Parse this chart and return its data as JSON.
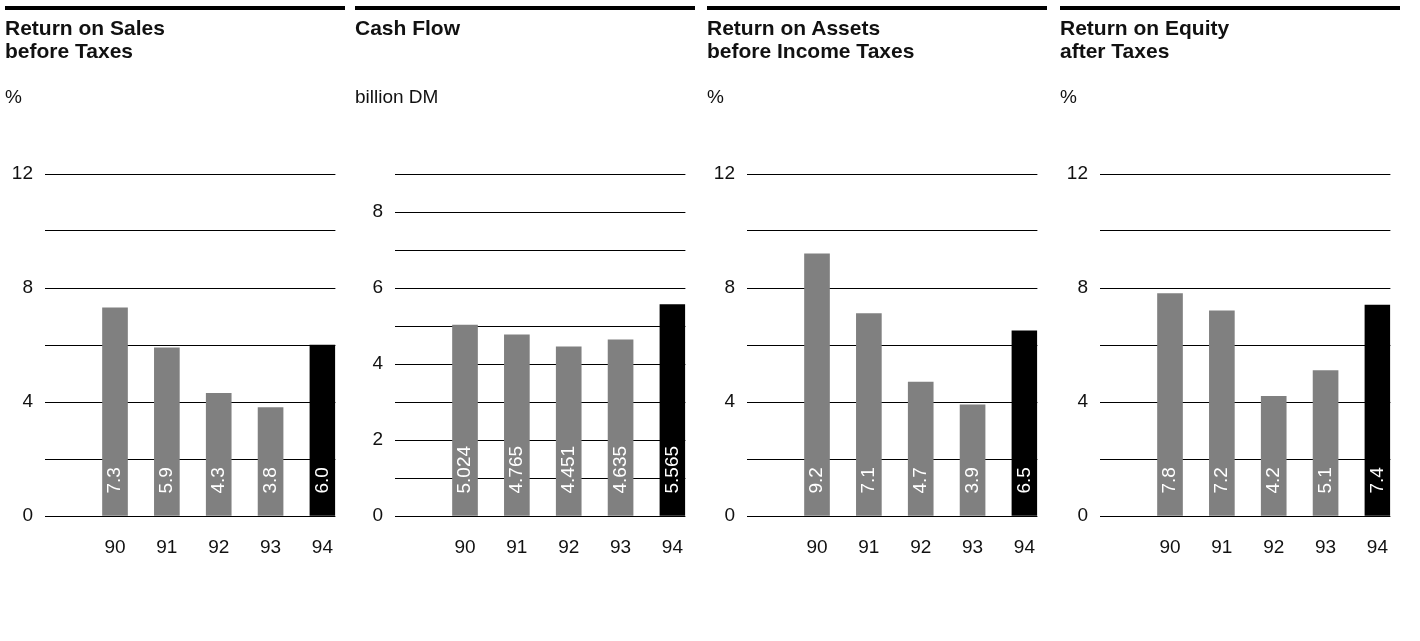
{
  "chart_data": [
    {
      "type": "bar",
      "title": "Return on Sales\nbefore Taxes",
      "ylabel": "%",
      "categories": [
        "90",
        "91",
        "92",
        "93",
        "94"
      ],
      "values": [
        7.3,
        5.9,
        4.3,
        3.8,
        6.0
      ],
      "value_labels": [
        "7.3",
        "5.9",
        "4.3",
        "3.8",
        "6.0"
      ],
      "colors": [
        "#808080",
        "#808080",
        "#808080",
        "#808080",
        "#000000"
      ],
      "ylim": [
        0,
        12
      ],
      "yticks": [
        0,
        {
          "value": 2,
          "label": null
        },
        4,
        {
          "value": 6,
          "label": null
        },
        8,
        {
          "value": 10,
          "label": null
        },
        12
      ],
      "grid": "y"
    },
    {
      "type": "bar",
      "title": "Cash Flow",
      "ylabel": "billion DM",
      "categories": [
        "90",
        "91",
        "92",
        "93",
        "94"
      ],
      "values": [
        5.024,
        4.765,
        4.451,
        4.635,
        5.565
      ],
      "value_labels": [
        "5.024",
        "4.765",
        "4.451",
        "4.635",
        "5.565"
      ],
      "colors": [
        "#808080",
        "#808080",
        "#808080",
        "#808080",
        "#000000"
      ],
      "ylim": [
        0,
        9
      ],
      "yticks": [
        0,
        {
          "value": 1,
          "label": null
        },
        2,
        {
          "value": 3,
          "label": null
        },
        4,
        {
          "value": 5,
          "label": null
        },
        6,
        {
          "value": 7,
          "label": null
        },
        8,
        {
          "value": 9,
          "label": null
        }
      ],
      "grid": "y"
    },
    {
      "type": "bar",
      "title": "Return on Assets\nbefore Income Taxes",
      "ylabel": "%",
      "categories": [
        "90",
        "91",
        "92",
        "93",
        "94"
      ],
      "values": [
        9.2,
        7.1,
        4.7,
        3.9,
        6.5
      ],
      "value_labels": [
        "9.2",
        "7.1",
        "4.7",
        "3.9",
        "6.5"
      ],
      "colors": [
        "#808080",
        "#808080",
        "#808080",
        "#808080",
        "#000000"
      ],
      "ylim": [
        0,
        12
      ],
      "yticks": [
        0,
        {
          "value": 2,
          "label": null
        },
        4,
        {
          "value": 6,
          "label": null
        },
        8,
        {
          "value": 10,
          "label": null
        },
        12
      ],
      "grid": "y"
    },
    {
      "type": "bar",
      "title": "Return on Equity\nafter Taxes",
      "ylabel": "%",
      "categories": [
        "90",
        "91",
        "92",
        "93",
        "94"
      ],
      "values": [
        7.8,
        7.2,
        4.2,
        5.1,
        7.4
      ],
      "value_labels": [
        "7.8",
        "7.2",
        "4.2",
        "5.1",
        "7.4"
      ],
      "colors": [
        "#808080",
        "#808080",
        "#808080",
        "#808080",
        "#000000"
      ],
      "ylim": [
        0,
        12
      ],
      "yticks": [
        0,
        {
          "value": 2,
          "label": null
        },
        4,
        {
          "value": 6,
          "label": null
        },
        8,
        {
          "value": 10,
          "label": null
        },
        12
      ],
      "grid": "y"
    }
  ]
}
